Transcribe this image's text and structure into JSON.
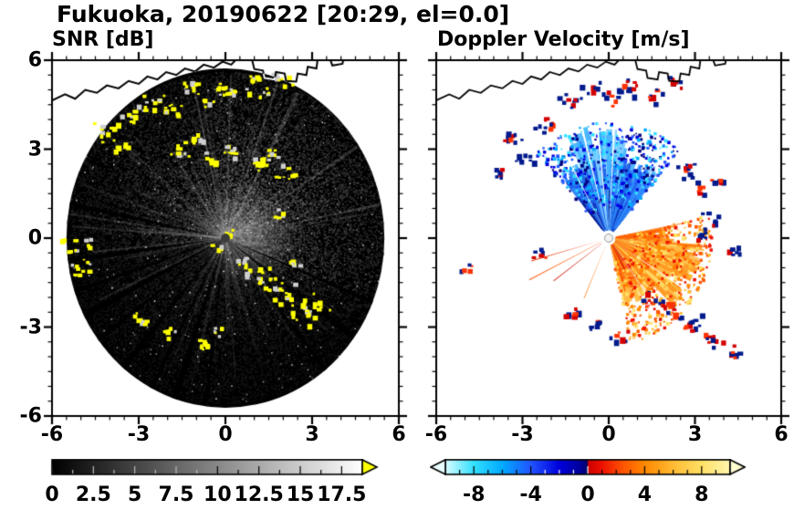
{
  "header": {
    "title": "Fukuoka, 20190622 [20:29, el=0.0]"
  },
  "panels": [
    {
      "id": "snr",
      "title": "SNR [dB]"
    },
    {
      "id": "doppler",
      "title": "Doppler Velocity [m/s]"
    }
  ],
  "chart_data": [
    {
      "type": "heatmap",
      "name": "snr-ppi",
      "title": "SNR [dB]",
      "xlim": [
        -6,
        6
      ],
      "ylim": [
        -6,
        6
      ],
      "x_ticks": [
        -6,
        -3,
        0,
        3,
        6
      ],
      "y_ticks": [
        -6,
        -3,
        0,
        3,
        6
      ],
      "minor_tick_step": 0.5,
      "grid": false,
      "radar": {
        "center": [
          0,
          0
        ],
        "radius_km": 5.7,
        "background": "#000000",
        "clutter_color": "#ffff00"
      },
      "regions": [
        {
          "label": "weak distributed echo disc with radial streaks",
          "snr_db": "0-10"
        },
        {
          "label": "ground clutter speckles (over-range, yellow)",
          "snr_db": ">18.75",
          "location": "north coastline band, northeast sector, southeast band, west rim"
        },
        {
          "label": "beam-blockage dark wedges",
          "direction": "southwest and south"
        }
      ],
      "colorbar": {
        "values": [
          0,
          2.5,
          5,
          7.5,
          10,
          12.5,
          15,
          17.5
        ],
        "label_values": [
          "0",
          "2.5",
          "5",
          "7.5",
          "10",
          "12.5",
          "15",
          "17.5"
        ],
        "range": [
          0,
          18.75
        ],
        "tick_step": 1.25,
        "colors": [
          "#000000",
          "#ffffff"
        ],
        "over_arrow_color": "#ffff00"
      }
    },
    {
      "type": "heatmap",
      "name": "doppler-ppi",
      "title": "Doppler Velocity [m/s]",
      "xlim": [
        -6,
        6
      ],
      "ylim": [
        -6,
        6
      ],
      "x_ticks": [
        -6,
        -3,
        0,
        3,
        6
      ],
      "y_ticks": [
        -6,
        -3,
        0,
        3,
        6
      ],
      "minor_tick_step": 0.5,
      "grid": false,
      "regions": [
        {
          "label": "approaching flow (blue fan)",
          "sector_deg": [
            50,
            130
          ],
          "range_km": [
            0.3,
            4.0
          ],
          "velocity_m_s": [
            -8,
            -1
          ]
        },
        {
          "label": "receding flow (orange/red fan)",
          "sector_deg": [
            -78,
            10
          ],
          "range_km": [
            0.3,
            3.2
          ],
          "velocity_m_s": [
            1,
            8
          ]
        },
        {
          "label": "noisy aliased edge blobs (navy/red pairs)",
          "velocity_m_s": "mixed near ±10"
        }
      ],
      "palette": {
        "negative": [
          "#d8fdff",
          "#33e0ff",
          "#00aaff",
          "#2255ff",
          "#0000dd",
          "#000080"
        ],
        "positive": [
          "#cc0000",
          "#ee1100",
          "#ff5500",
          "#ff8800",
          "#ffbb33",
          "#ffe066",
          "#fff7b0"
        ]
      },
      "colorbar": {
        "values": [
          -8,
          -4,
          0,
          4,
          8
        ],
        "label_values": [
          "-8",
          "-4",
          "0",
          "4",
          "8"
        ],
        "range": [
          -10,
          10
        ],
        "tick_step": 1,
        "under_arrow_color": "#eaffff",
        "over_arrow_color": "#ffffd0"
      }
    }
  ]
}
